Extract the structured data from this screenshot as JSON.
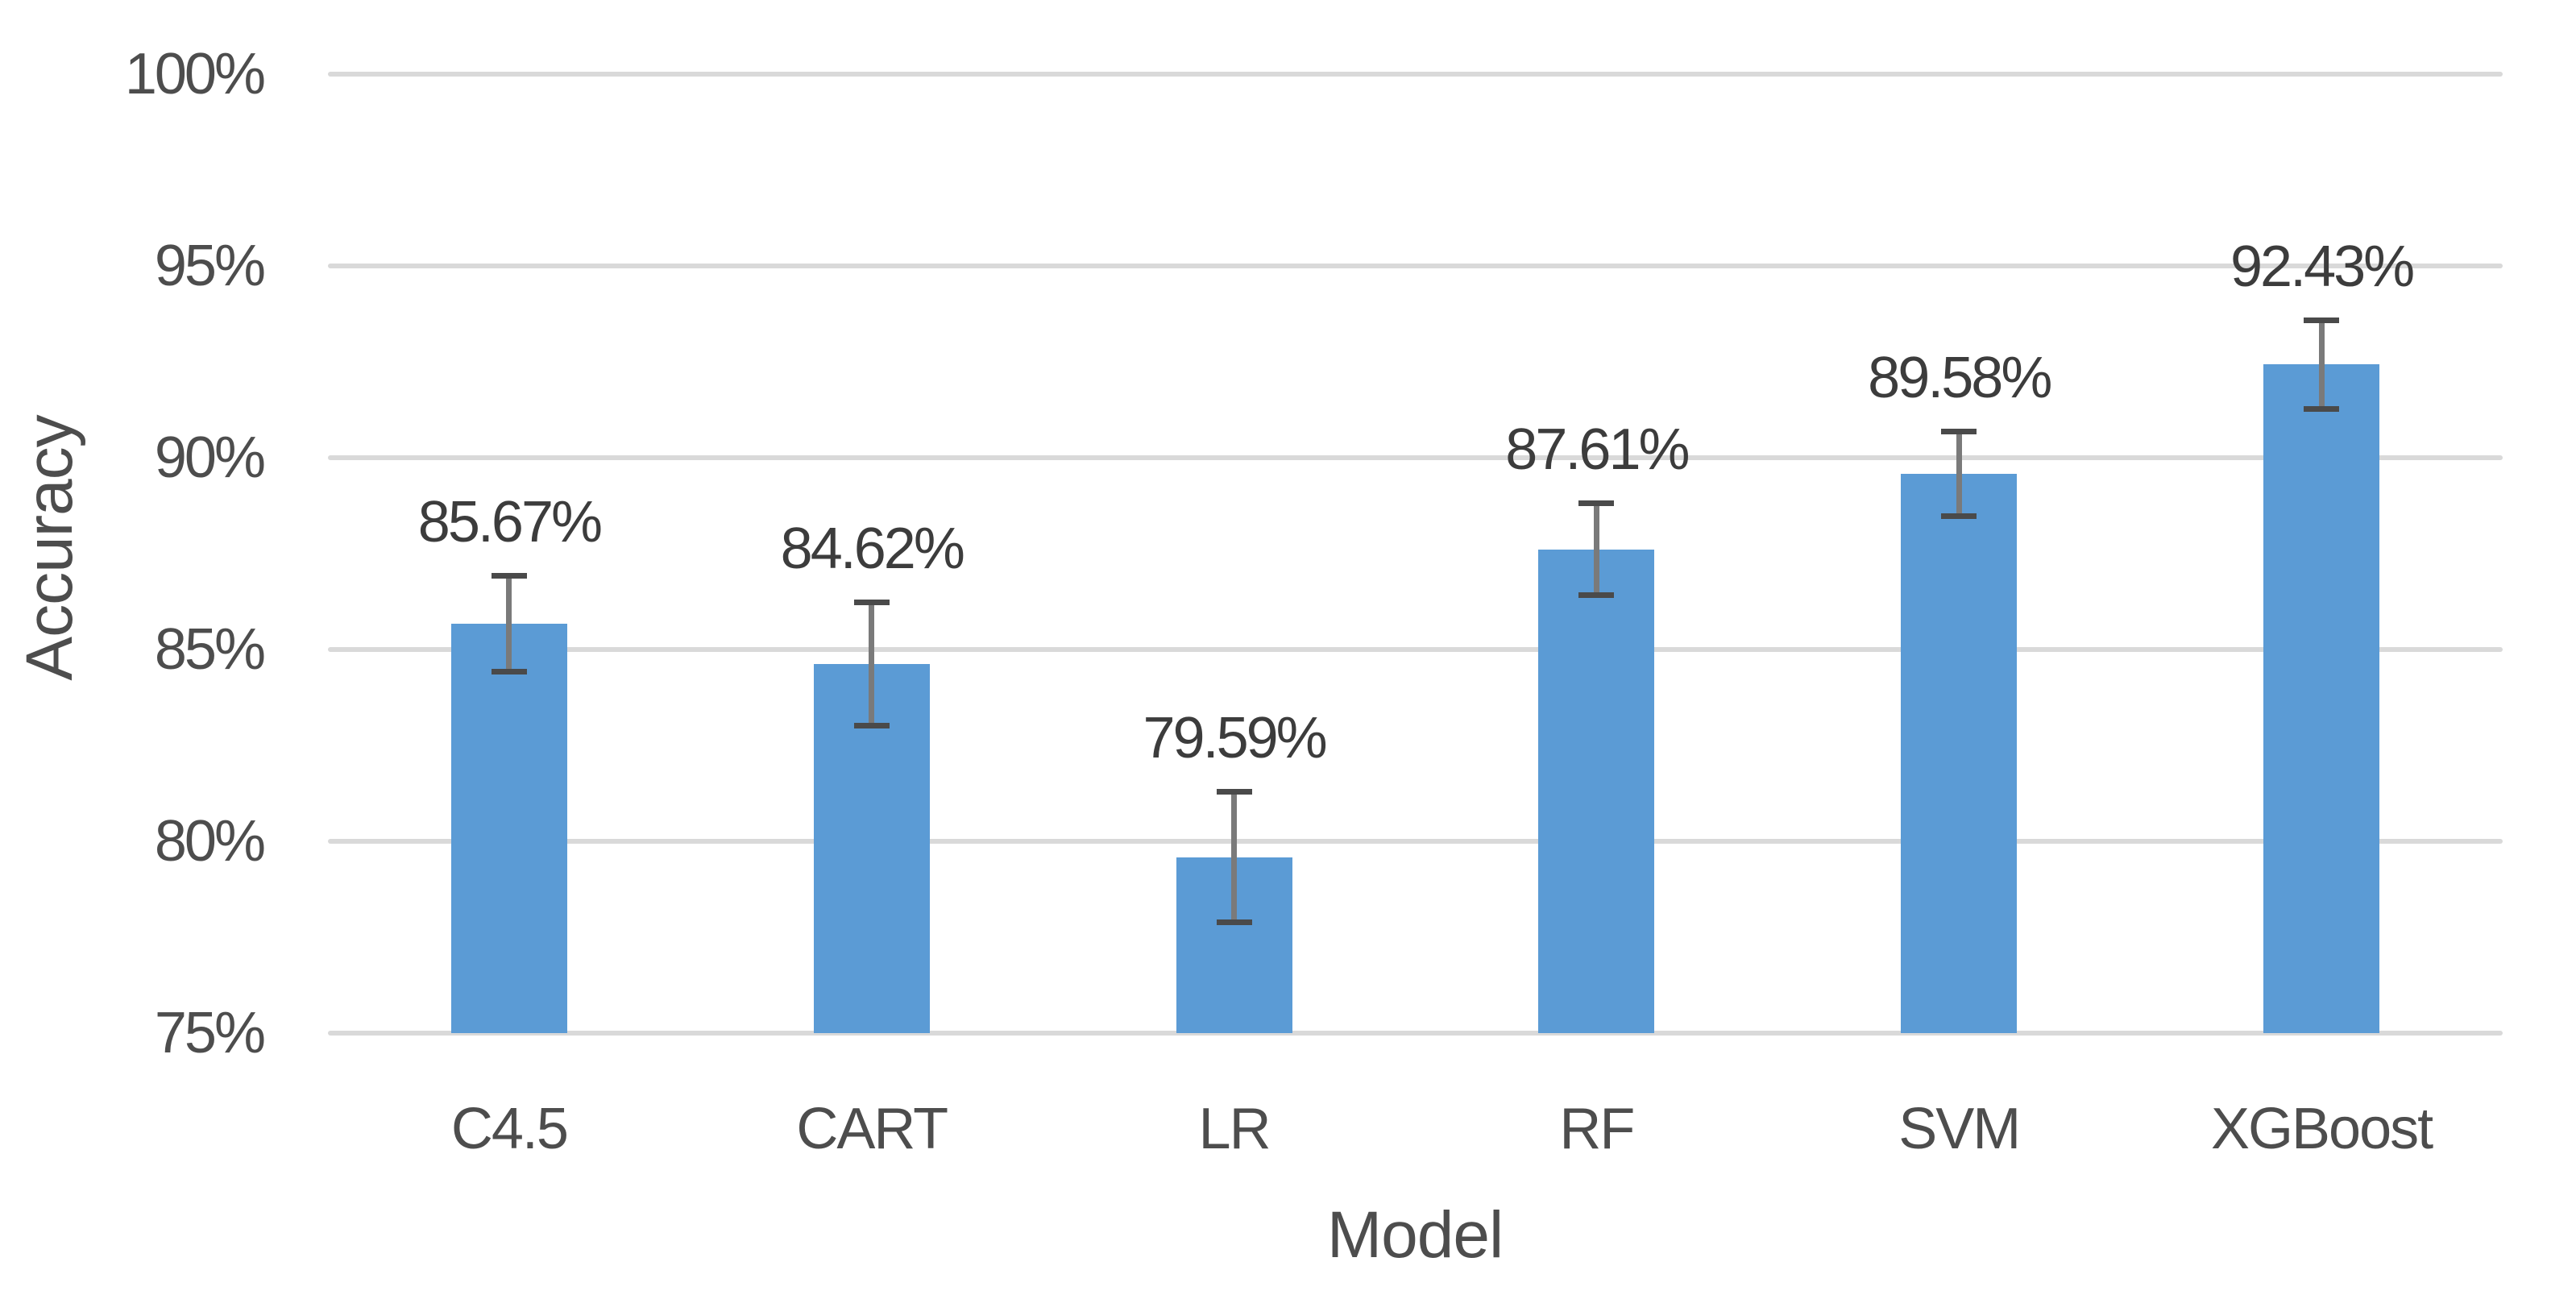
{
  "chart_data": {
    "type": "bar",
    "title": "",
    "xlabel": "Model",
    "ylabel": "Accuracy",
    "categories": [
      "C4.5",
      "CART",
      "LR",
      "RF",
      "SVM",
      "XGBoost"
    ],
    "values": [
      85.67,
      84.62,
      79.59,
      87.61,
      89.58,
      92.43
    ],
    "data_labels": [
      "85.67%",
      "84.62%",
      "79.59%",
      "87.61%",
      "89.58%",
      "92.43%"
    ],
    "error_bars": [
      1.25,
      1.6,
      1.7,
      1.2,
      1.1,
      1.15
    ],
    "ylim": [
      75,
      100
    ],
    "y_ticks": [
      {
        "value": 100,
        "label": "100%"
      },
      {
        "value": 95,
        "label": "95%"
      },
      {
        "value": 90,
        "label": "90%"
      },
      {
        "value": 85,
        "label": "85%"
      },
      {
        "value": 80,
        "label": "80%"
      },
      {
        "value": 75,
        "label": "75%"
      }
    ],
    "grid": "horizontal",
    "legend": "none",
    "colors": {
      "bar": "#5B9BD5",
      "error_line": "#7A7A7A",
      "error_cap": "#4A4A4A",
      "gridline": "#D9D9D9",
      "tick_text": "#4D4D4D",
      "value_text": "#3C3C3C",
      "axis_title_text": "#4D4D4D"
    }
  }
}
